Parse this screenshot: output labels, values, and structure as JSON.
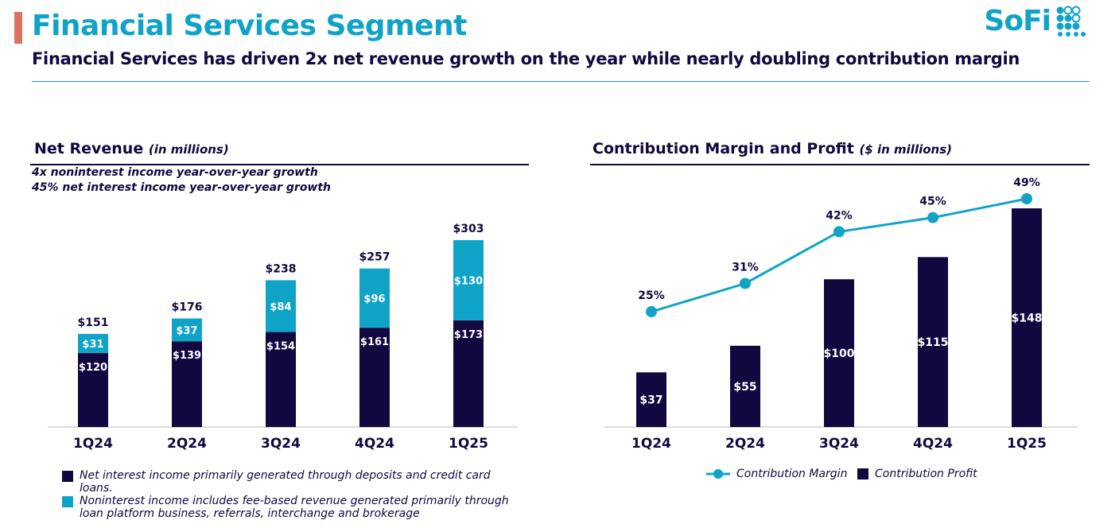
{
  "header": {
    "title": "Financial Services Segment",
    "subtitle": "Financial Services has driven 2x net revenue growth on the year while nearly doubling contribution margin",
    "logo_text": "SoFi"
  },
  "colors": {
    "navy": "#13073f",
    "teal": "#10a3c8",
    "accent": "#d9735f"
  },
  "left_panel": {
    "title": "Net Revenue",
    "title_unit": "(in millions)",
    "notes": [
      "4x noninterest income year-over-year growth",
      "45% net interest income year-over-year growth"
    ],
    "legend": [
      {
        "text": "Net interest income primarily generated through deposits and credit card loans.",
        "color": "#13073f"
      },
      {
        "text": "Noninterest income includes fee-based revenue generated primarily through loan platform business, referrals, interchange and brokerage",
        "color": "#10a3c8"
      }
    ]
  },
  "right_panel": {
    "title": "Contribution Margin and Profit",
    "title_unit": "($ in millions)",
    "legend": {
      "line_label": "Contribution Margin",
      "bar_label": "Contribution Profit"
    }
  },
  "chart_data": [
    {
      "type": "bar",
      "stacked": true,
      "title": "Net Revenue",
      "categories": [
        "1Q24",
        "2Q24",
        "3Q24",
        "4Q24",
        "1Q25"
      ],
      "series": [
        {
          "name": "Net interest income",
          "values": [
            120,
            139,
            154,
            161,
            173
          ],
          "labels": [
            "$120",
            "$139",
            "$154",
            "$161",
            "$173"
          ],
          "color": "#13073f"
        },
        {
          "name": "Noninterest income",
          "values": [
            31,
            37,
            84,
            96,
            130
          ],
          "labels": [
            "$31",
            "$37",
            "$84",
            "$96",
            "$130"
          ],
          "color": "#10a3c8"
        }
      ],
      "totals": [
        "$151",
        "$176",
        "$238",
        "$257",
        "$303"
      ],
      "ylim": [
        0,
        303
      ]
    },
    {
      "type": "bar",
      "title": "Contribution Margin and Profit",
      "categories": [
        "1Q24",
        "2Q24",
        "3Q24",
        "4Q24",
        "1Q25"
      ],
      "series": [
        {
          "name": "Contribution Profit",
          "values": [
            37,
            55,
            100,
            115,
            148
          ],
          "labels": [
            "$37",
            "$55",
            "$100",
            "$115",
            "$148"
          ],
          "color": "#13073f"
        }
      ],
      "line": {
        "name": "Contribution Margin",
        "values": [
          25,
          31,
          42,
          45,
          49
        ],
        "labels": [
          "25%",
          "31%",
          "42%",
          "45%",
          "49%"
        ],
        "color": "#10a3c8"
      },
      "ylim": [
        0,
        148
      ]
    }
  ]
}
